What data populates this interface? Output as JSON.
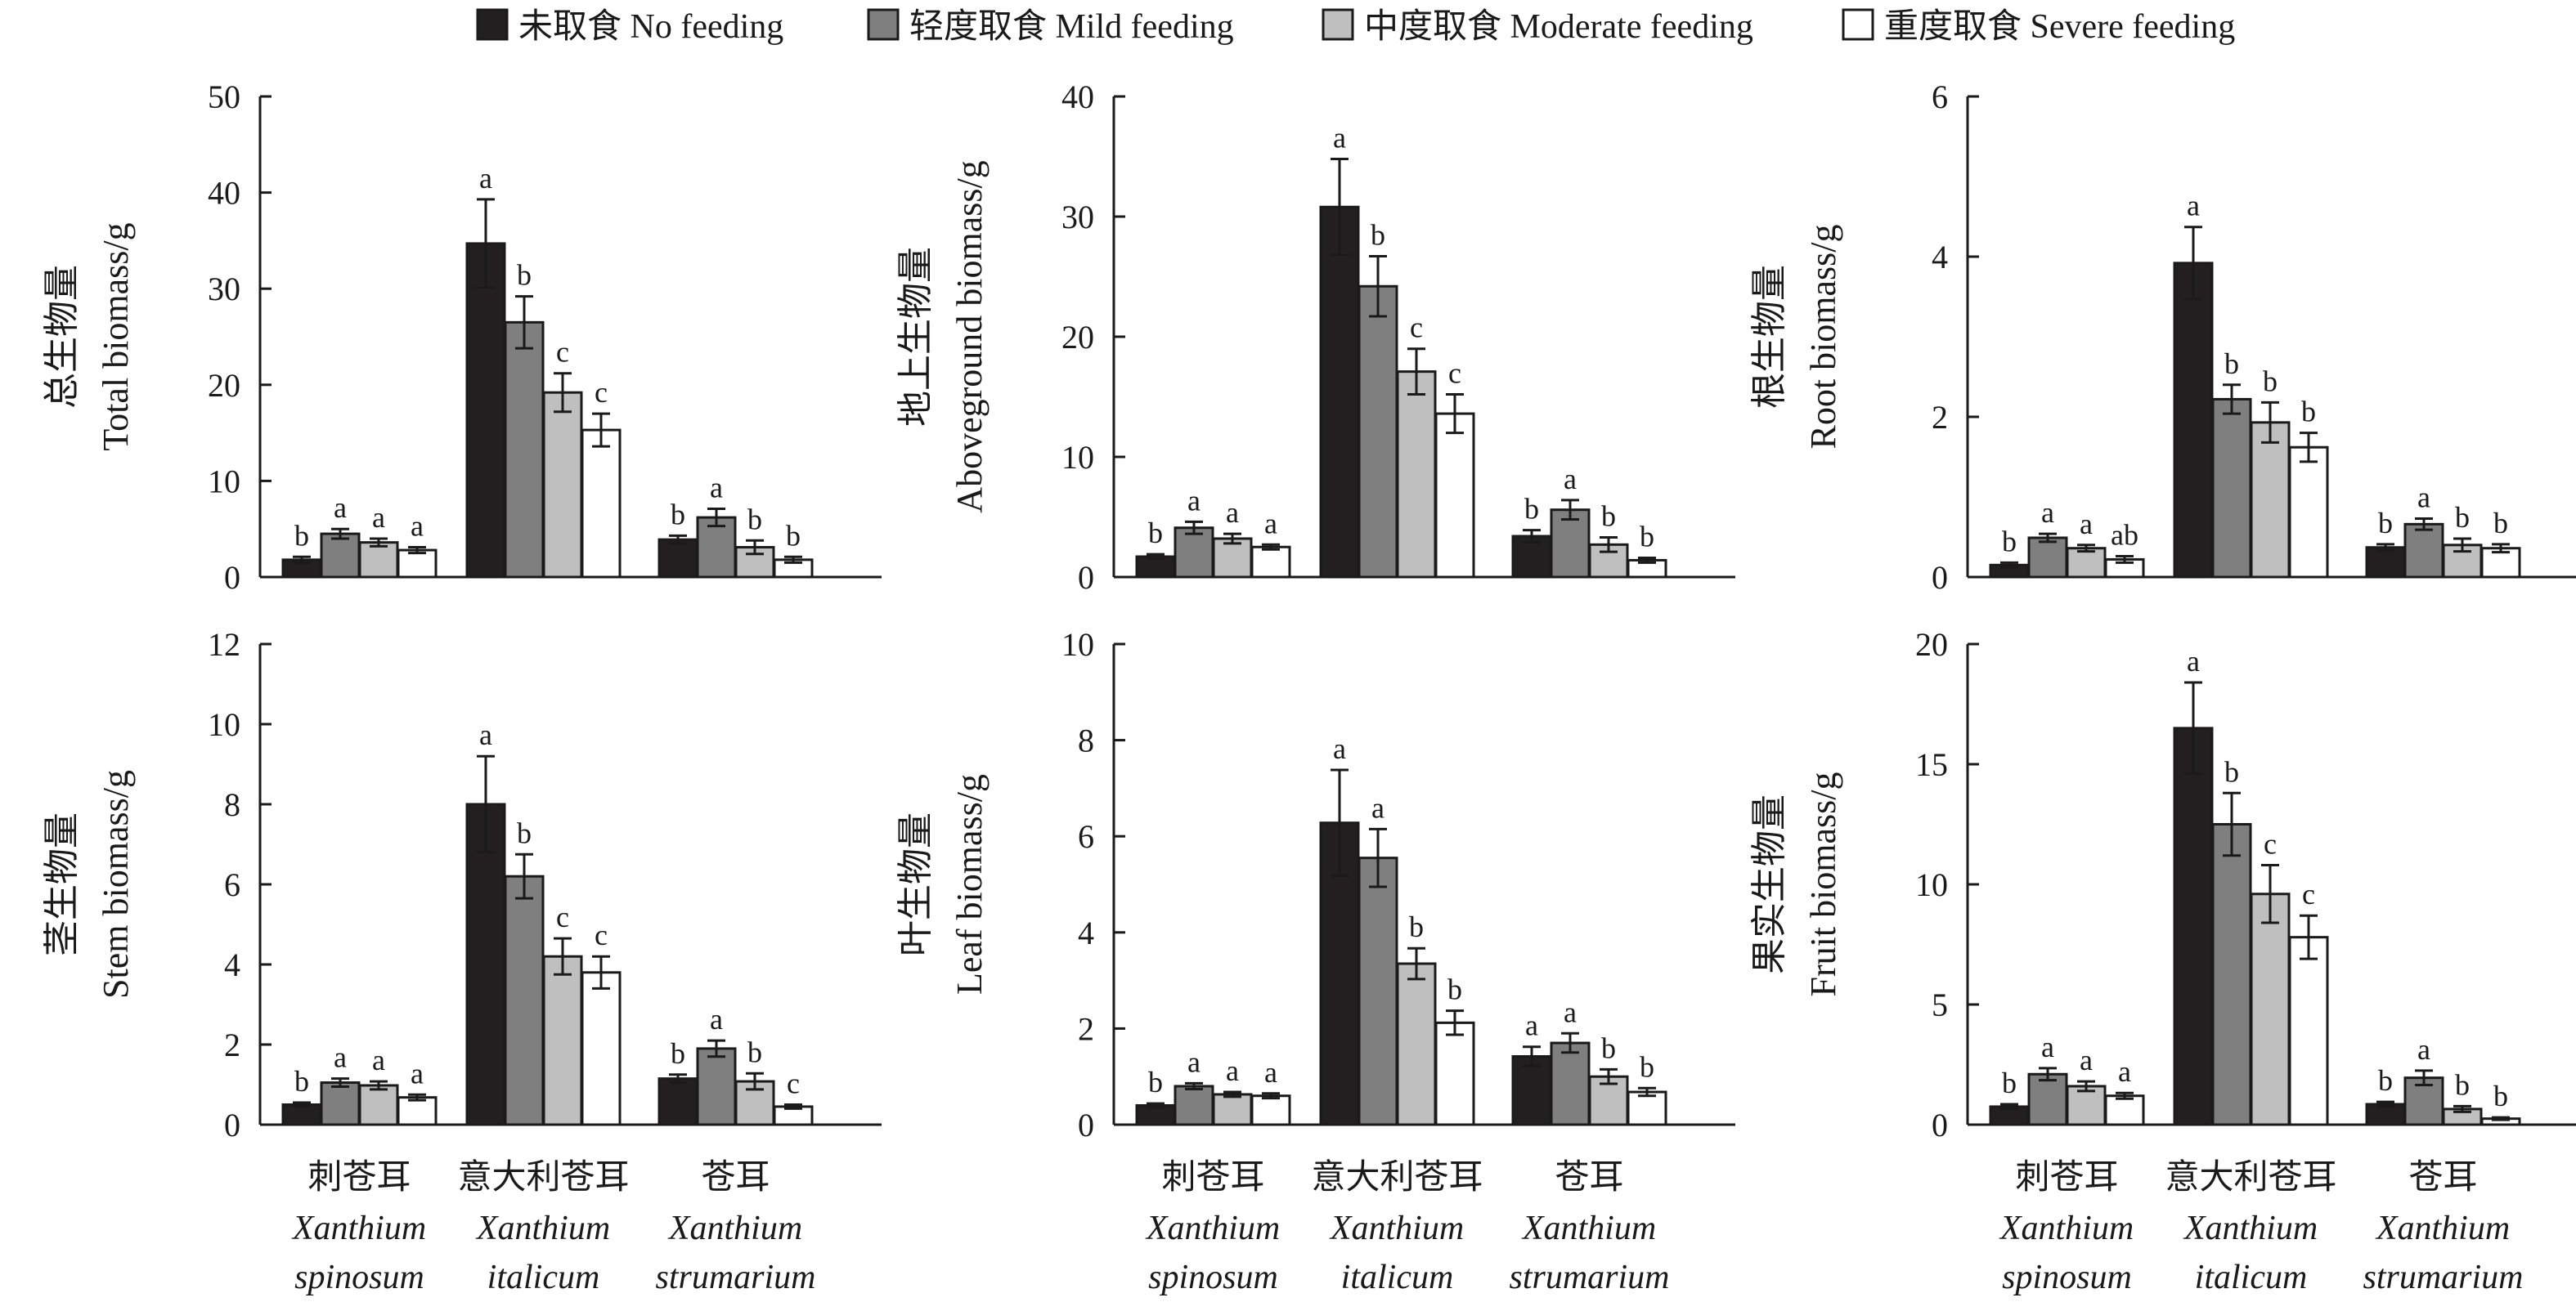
{
  "legend": {
    "items": [
      {
        "label": "未取食 No feeding",
        "color": "#231f20"
      },
      {
        "label": "轻度取食 Mild feeding",
        "color": "#7f7f7f"
      },
      {
        "label": "中度取食 Moderate feeding",
        "color": "#bfbfbf"
      },
      {
        "label": "重度取食 Severe feeding",
        "color": "#ffffff"
      }
    ]
  },
  "species": [
    {
      "zh": "刺苍耳",
      "genus": "Xanthium",
      "epithet": "spinosum"
    },
    {
      "zh": "意大利苍耳",
      "genus": "Xanthium",
      "epithet": "italicum"
    },
    {
      "zh": "苍耳",
      "genus": "Xanthium",
      "epithet": "strumarium"
    }
  ],
  "chart_data": [
    {
      "type": "bar",
      "ylabel_zh": "总生物量",
      "ylabel_en": "Total biomass/g",
      "ylim": [
        0,
        50
      ],
      "yticks": [
        0,
        10,
        20,
        30,
        40,
        50
      ],
      "categories": [
        "刺苍耳",
        "意大利苍耳",
        "苍耳"
      ],
      "series": [
        {
          "name": "未取食 No feeding",
          "values": [
            1.8,
            34.7,
            3.9
          ],
          "errors": [
            0.3,
            4.6,
            0.4
          ],
          "labels": [
            "b",
            "a",
            "b"
          ]
        },
        {
          "name": "轻度取食 Mild feeding",
          "values": [
            4.5,
            26.5,
            6.2
          ],
          "errors": [
            0.5,
            2.7,
            0.9
          ],
          "labels": [
            "a",
            "b",
            "a"
          ]
        },
        {
          "name": "中度取食 Moderate feeding",
          "values": [
            3.6,
            19.2,
            3.1
          ],
          "errors": [
            0.4,
            2.0,
            0.7
          ],
          "labels": [
            "a",
            "c",
            "b"
          ]
        },
        {
          "name": "重度取食 Severe feeding",
          "values": [
            2.8,
            15.3,
            1.8
          ],
          "errors": [
            0.3,
            1.7,
            0.3
          ],
          "labels": [
            "a",
            "c",
            "b"
          ]
        }
      ]
    },
    {
      "type": "bar",
      "ylabel_zh": "地上生物量",
      "ylabel_en": "Aboveground biomass/g",
      "ylim": [
        0,
        40
      ],
      "yticks": [
        0,
        10,
        20,
        30,
        40
      ],
      "categories": [
        "刺苍耳",
        "意大利苍耳",
        "苍耳"
      ],
      "series": [
        {
          "name": "未取食 No feeding",
          "values": [
            1.7,
            30.8,
            3.4
          ],
          "errors": [
            0.2,
            4.0,
            0.5
          ],
          "labels": [
            "b",
            "a",
            "b"
          ]
        },
        {
          "name": "轻度取食 Mild feeding",
          "values": [
            4.1,
            24.2,
            5.6
          ],
          "errors": [
            0.5,
            2.5,
            0.8
          ],
          "labels": [
            "a",
            "b",
            "a"
          ]
        },
        {
          "name": "中度取食 Moderate feeding",
          "values": [
            3.2,
            17.1,
            2.7
          ],
          "errors": [
            0.4,
            1.9,
            0.6
          ],
          "labels": [
            "a",
            "c",
            "b"
          ]
        },
        {
          "name": "重度取食 Severe feeding",
          "values": [
            2.5,
            13.6,
            1.4
          ],
          "errors": [
            0.2,
            1.6,
            0.2
          ],
          "labels": [
            "a",
            "c",
            "b"
          ]
        }
      ]
    },
    {
      "type": "bar",
      "ylabel_zh": "根生物量",
      "ylabel_en": "Root biomass/g",
      "ylim": [
        0,
        6
      ],
      "yticks": [
        0,
        2,
        4,
        6
      ],
      "categories": [
        "刺苍耳",
        "意大利苍耳",
        "苍耳"
      ],
      "series": [
        {
          "name": "未取食 No feeding",
          "values": [
            0.15,
            3.92,
            0.37
          ],
          "errors": [
            0.03,
            0.45,
            0.04
          ],
          "labels": [
            "b",
            "a",
            "b"
          ]
        },
        {
          "name": "轻度取食 Mild feeding",
          "values": [
            0.49,
            2.22,
            0.66
          ],
          "errors": [
            0.05,
            0.18,
            0.07
          ],
          "labels": [
            "a",
            "b",
            "a"
          ]
        },
        {
          "name": "中度取食 Moderate feeding",
          "values": [
            0.36,
            1.93,
            0.4
          ],
          "errors": [
            0.04,
            0.25,
            0.08
          ],
          "labels": [
            "a",
            "b",
            "b"
          ]
        },
        {
          "name": "重度取食 Severe feeding",
          "values": [
            0.22,
            1.62,
            0.36
          ],
          "errors": [
            0.04,
            0.18,
            0.05
          ],
          "labels": [
            "ab",
            "b",
            "b"
          ]
        }
      ]
    },
    {
      "type": "bar",
      "ylabel_zh": "茎生物量",
      "ylabel_en": "Stem biomass/g",
      "ylim": [
        0,
        12
      ],
      "yticks": [
        0,
        2,
        4,
        6,
        8,
        10,
        12
      ],
      "categories": [
        "刺苍耳",
        "意大利苍耳",
        "苍耳"
      ],
      "series": [
        {
          "name": "未取食 No feeding",
          "values": [
            0.5,
            8.0,
            1.15
          ],
          "errors": [
            0.05,
            1.2,
            0.1
          ],
          "labels": [
            "b",
            "a",
            "b"
          ]
        },
        {
          "name": "轻度取食 Mild feeding",
          "values": [
            1.05,
            6.2,
            1.9
          ],
          "errors": [
            0.1,
            0.55,
            0.2
          ],
          "labels": [
            "a",
            "b",
            "a"
          ]
        },
        {
          "name": "中度取食 Moderate feeding",
          "values": [
            0.98,
            4.2,
            1.08
          ],
          "errors": [
            0.1,
            0.45,
            0.2
          ],
          "labels": [
            "a",
            "c",
            "b"
          ]
        },
        {
          "name": "重度取食 Severe feeding",
          "values": [
            0.68,
            3.8,
            0.45
          ],
          "errors": [
            0.07,
            0.4,
            0.05
          ],
          "labels": [
            "a",
            "c",
            "c"
          ]
        }
      ]
    },
    {
      "type": "bar",
      "ylabel_zh": "叶生物量",
      "ylabel_en": "Leaf biomass/g",
      "ylim": [
        0,
        10
      ],
      "yticks": [
        0,
        2,
        4,
        6,
        8,
        10
      ],
      "categories": [
        "刺苍耳",
        "意大利苍耳",
        "苍耳"
      ],
      "series": [
        {
          "name": "未取食 No feeding",
          "values": [
            0.4,
            6.28,
            1.42
          ],
          "errors": [
            0.04,
            1.1,
            0.2
          ],
          "labels": [
            "b",
            "a",
            "a"
          ]
        },
        {
          "name": "轻度取食 Mild feeding",
          "values": [
            0.8,
            5.55,
            1.7
          ],
          "errors": [
            0.06,
            0.6,
            0.2
          ],
          "labels": [
            "a",
            "a",
            "a"
          ]
        },
        {
          "name": "中度取食 Moderate feeding",
          "values": [
            0.63,
            3.35,
            1.0
          ],
          "errors": [
            0.05,
            0.32,
            0.15
          ],
          "labels": [
            "a",
            "b",
            "b"
          ]
        },
        {
          "name": "重度取食 Severe feeding",
          "values": [
            0.6,
            2.12,
            0.68
          ],
          "errors": [
            0.05,
            0.25,
            0.08
          ],
          "labels": [
            "a",
            "b",
            "b"
          ]
        }
      ]
    },
    {
      "type": "bar",
      "ylabel_zh": "果实生物量",
      "ylabel_en": "Fruit biomass/g",
      "ylim": [
        0,
        20
      ],
      "yticks": [
        0,
        5,
        10,
        15,
        20
      ],
      "categories": [
        "刺苍耳",
        "意大利苍耳",
        "苍耳"
      ],
      "series": [
        {
          "name": "未取食 No feeding",
          "values": [
            0.75,
            16.5,
            0.85
          ],
          "errors": [
            0.1,
            1.9,
            0.1
          ],
          "labels": [
            "b",
            "a",
            "b"
          ]
        },
        {
          "name": "轻度取食 Mild feeding",
          "values": [
            2.1,
            12.5,
            1.95
          ],
          "errors": [
            0.25,
            1.3,
            0.3
          ],
          "labels": [
            "a",
            "b",
            "a"
          ]
        },
        {
          "name": "中度取食 Moderate feeding",
          "values": [
            1.6,
            9.6,
            0.65
          ],
          "errors": [
            0.2,
            1.2,
            0.12
          ],
          "labels": [
            "a",
            "c",
            "b"
          ]
        },
        {
          "name": "重度取食 Severe feeding",
          "values": [
            1.2,
            7.8,
            0.25
          ],
          "errors": [
            0.12,
            0.9,
            0.05
          ],
          "labels": [
            "a",
            "c",
            "b"
          ]
        }
      ]
    }
  ]
}
